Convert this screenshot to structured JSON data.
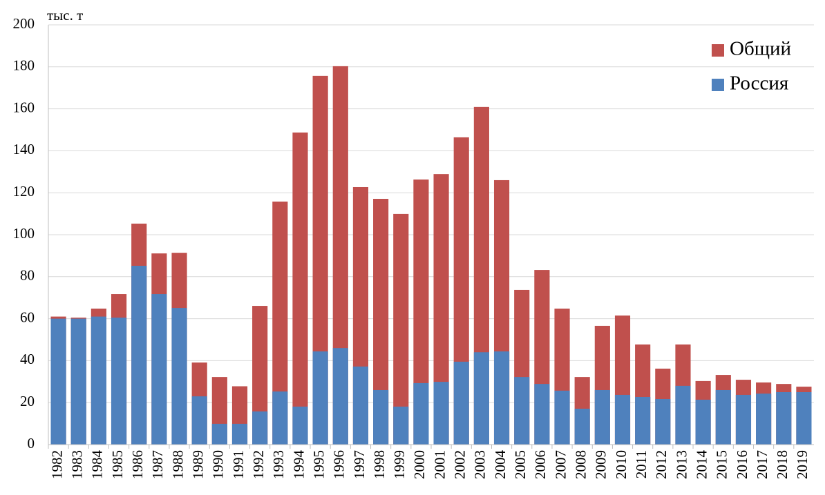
{
  "chart_data": {
    "type": "bar",
    "ylabel": "тыс. т",
    "categories": [
      "1982",
      "1983",
      "1984",
      "1985",
      "1986",
      "1987",
      "1988",
      "1989",
      "1990",
      "1991",
      "1992",
      "1993",
      "1994",
      "1995",
      "1996",
      "1997",
      "1998",
      "1999",
      "2000",
      "2001",
      "2002",
      "2003",
      "2004",
      "2005",
      "2006",
      "2007",
      "2008",
      "2009",
      "2010",
      "2011",
      "2012",
      "2013",
      "2014",
      "2015",
      "2016",
      "2017",
      "2018",
      "2019"
    ],
    "series": [
      {
        "name": "Общий",
        "color": "#c0504d",
        "values": [
          61,
          60.5,
          64.8,
          71.7,
          105.3,
          91.1,
          91.4,
          39.1,
          32.2,
          27.8,
          66.1,
          115.8,
          148.7,
          175.7,
          180.3,
          122.7,
          117.1,
          109.9,
          126.3,
          128.9,
          146.4,
          160.9,
          126,
          73.7,
          83.2,
          64.8,
          32.2,
          56.6,
          61.5,
          47.7,
          36.2,
          47.7,
          30.3,
          33.2,
          30.9,
          29.6,
          28.9,
          27.6
        ]
      },
      {
        "name": "Россия",
        "color": "#4f81bd",
        "values": [
          60,
          60,
          61,
          60.5,
          85.2,
          71.7,
          65.1,
          23,
          9.9,
          9.9,
          15.8,
          25.3,
          18.1,
          44.4,
          46,
          37.2,
          26,
          18.1,
          29.3,
          29.9,
          39.5,
          44,
          44.4,
          32.2,
          28.9,
          25.7,
          17.1,
          26,
          23.7,
          22.7,
          21.7,
          28,
          21.4,
          26,
          23.7,
          24.3,
          25,
          25
        ]
      }
    ],
    "ylim": [
      0,
      200
    ],
    "yticks": [
      0,
      20,
      40,
      60,
      80,
      100,
      120,
      140,
      160,
      180,
      200
    ],
    "grid": true,
    "legend": "upper right"
  }
}
